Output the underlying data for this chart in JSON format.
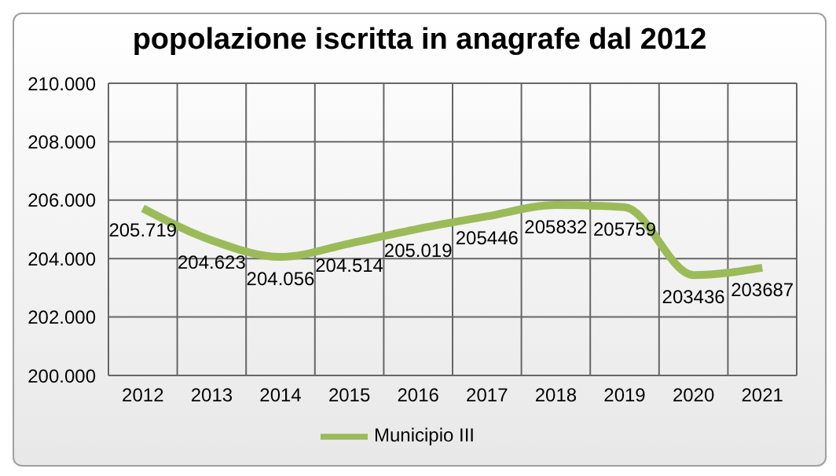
{
  "chart_data": {
    "type": "line",
    "title": "popolazione iscritta in anagrafe dal 2012",
    "categories": [
      "2012",
      "2013",
      "2014",
      "2015",
      "2016",
      "2017",
      "2018",
      "2019",
      "2020",
      "2021"
    ],
    "series": [
      {
        "name": "Municipio III",
        "color": "#9bbb59",
        "values": [
          205719,
          204623,
          204056,
          204514,
          205019,
          205446,
          205832,
          205759,
          203436,
          203687
        ],
        "value_labels": [
          "205.719",
          "204.623",
          "204.056",
          "204.514",
          "205.019",
          "205446",
          "205832",
          "205759",
          "203436",
          "203687"
        ]
      }
    ],
    "ylim": [
      200000,
      210000
    ],
    "yticks": [
      {
        "value": 200000,
        "label": "200.000"
      },
      {
        "value": 202000,
        "label": "202.000"
      },
      {
        "value": 204000,
        "label": "204.000"
      },
      {
        "value": 206000,
        "label": "206.000"
      },
      {
        "value": 208000,
        "label": "208.000"
      },
      {
        "value": 210000,
        "label": "210.000"
      }
    ],
    "grid": true,
    "legend": "bottom",
    "marker": "none",
    "line_style": "solid"
  }
}
